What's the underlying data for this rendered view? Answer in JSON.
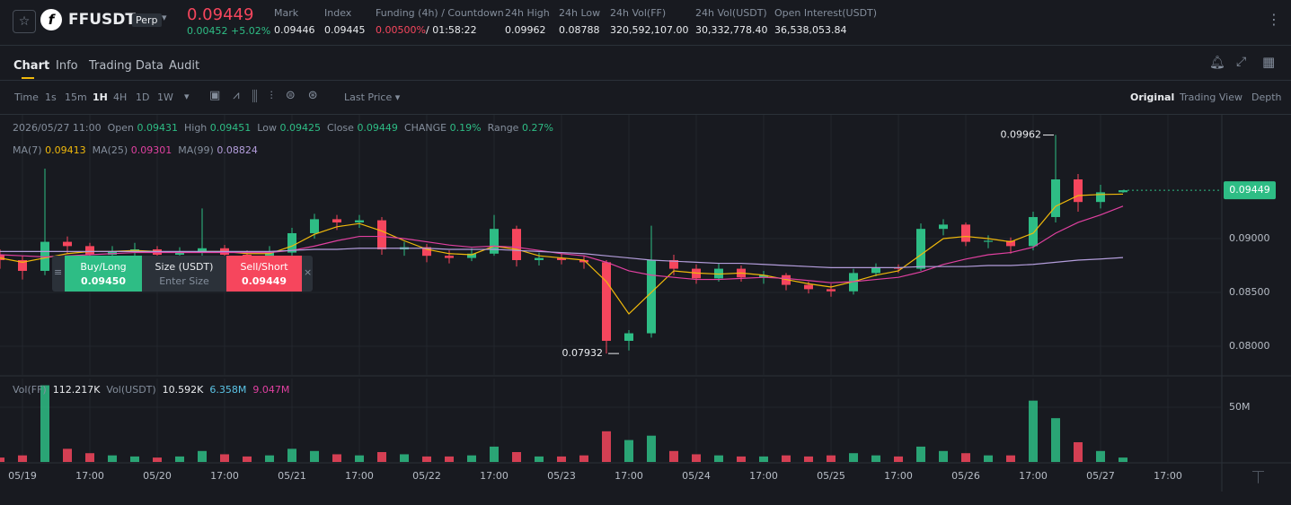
{
  "ui": {
    "symbol": "FFUSDT",
    "contract": "Perp",
    "price": "0.09449",
    "change": "0.00452 +5.02%",
    "stats": [
      {
        "label": "Mark",
        "value": "0.09446"
      },
      {
        "label": "Index",
        "value": "0.09445"
      },
      {
        "label": "Funding (4h) / Countdown",
        "value": "0.00500%",
        "value2": "/ 01:58:22"
      },
      {
        "label": "24h High",
        "value": "0.09962"
      },
      {
        "label": "24h Low",
        "value": "0.08788"
      },
      {
        "label": "24h Vol(FF)",
        "value": "320,592,107.00"
      },
      {
        "label": "24h Vol(USDT)",
        "value": "30,332,778.40"
      },
      {
        "label": "Open Interest(USDT)",
        "value": "36,538,053.84"
      }
    ],
    "tabs": [
      "Chart",
      "Info",
      "Trading Data",
      "Audit"
    ],
    "intervals": [
      "Time",
      "1s",
      "15m",
      "1H",
      "4H",
      "1D",
      "1W"
    ],
    "price_type": "Last Price",
    "views": [
      "Original",
      "Trading View",
      "Depth"
    ],
    "legend": {
      "time": "2026/05/27 11:00",
      "open": "Open",
      "high": "High",
      "low": "Low",
      "close": "Close",
      "change_label": "CHANGE",
      "change": "0.19%",
      "range_label": "Range",
      "range": "0.27%"
    },
    "volume_legend": {
      "vol_ff": "Vol(FF)",
      "vol_ff_value": "112.217K",
      "vol_usdt": "Vol(USDT)",
      "vol_usdt_value": "10.592K",
      "ma1": "6.358M",
      "ma2": "9.047M"
    },
    "order_panel": {
      "buy": "Buy/Long",
      "buy_price": "0.09450",
      "size": "Size (USDT)",
      "size_placeholder": "Enter Size",
      "sell": "Sell/Short",
      "sell_price": "0.09449"
    }
  },
  "chart_data": {
    "type": "candlestick",
    "up_color": "#2ebd85",
    "down_color": "#f6465d",
    "grid": true,
    "xlim": [
      0,
      54.4
    ],
    "xticks": [
      {
        "value": 1,
        "label": "05/19"
      },
      {
        "value": 4,
        "label": "17:00"
      },
      {
        "value": 7,
        "label": "05/20"
      },
      {
        "value": 10,
        "label": "17:00"
      },
      {
        "value": 13,
        "label": "05/21"
      },
      {
        "value": 16,
        "label": "17:00"
      },
      {
        "value": 19,
        "label": "05/22"
      },
      {
        "value": 22,
        "label": "17:00"
      },
      {
        "value": 25,
        "label": "05/23"
      },
      {
        "value": 28,
        "label": "17:00"
      },
      {
        "value": 31,
        "label": "05/24"
      },
      {
        "value": 34,
        "label": "17:00"
      },
      {
        "value": 37,
        "label": "05/25"
      },
      {
        "value": 40,
        "label": "17:00"
      },
      {
        "value": 43,
        "label": "05/26"
      },
      {
        "value": 46,
        "label": "17:00"
      },
      {
        "value": 49,
        "label": "05/27"
      },
      {
        "value": 52,
        "label": "17:00"
      }
    ],
    "ylim": [
      0.07733,
      0.1015
    ],
    "yticks": [
      {
        "value": 0.08,
        "label": "0.08000"
      },
      {
        "value": 0.085,
        "label": "0.08500"
      },
      {
        "value": 0.09,
        "label": "0.09000"
      }
    ],
    "candles": {
      "open": [
        0.0885,
        0.088,
        0.087,
        0.0897,
        0.0893,
        0.0885,
        0.0888,
        0.089,
        0.0885,
        0.0888,
        0.0891,
        0.0885,
        0.0883,
        0.0887,
        0.0905,
        0.0918,
        0.0915,
        0.0917,
        0.089,
        0.0892,
        0.0884,
        0.0882,
        0.0886,
        0.0909,
        0.088,
        0.0882,
        0.088,
        0.0878,
        0.0805,
        0.0812,
        0.088,
        0.0872,
        0.0863,
        0.0872,
        0.0864,
        0.0866,
        0.0857,
        0.0853,
        0.0851,
        0.0868,
        0.0873,
        0.0872,
        0.0909,
        0.0913,
        0.0897,
        0.0898,
        0.0893,
        0.092,
        0.0955,
        0.0934,
        0.09431
      ],
      "high": [
        0.089,
        0.0884,
        0.0965,
        0.0902,
        0.0896,
        0.0893,
        0.0896,
        0.0893,
        0.0892,
        0.0928,
        0.0894,
        0.0889,
        0.0893,
        0.091,
        0.0923,
        0.0922,
        0.0922,
        0.092,
        0.0897,
        0.0895,
        0.0889,
        0.0891,
        0.0922,
        0.0912,
        0.0887,
        0.0886,
        0.0884,
        0.088,
        0.0815,
        0.0912,
        0.0885,
        0.0876,
        0.0877,
        0.0875,
        0.087,
        0.0868,
        0.086,
        0.0858,
        0.0872,
        0.0877,
        0.0876,
        0.0914,
        0.0918,
        0.0915,
        0.0903,
        0.0901,
        0.0925,
        0.09962,
        0.096,
        0.095,
        0.09451
      ],
      "low": [
        0.0872,
        0.0862,
        0.0866,
        0.0886,
        0.088,
        0.0881,
        0.0884,
        0.088,
        0.0881,
        0.0884,
        0.088,
        0.0877,
        0.0878,
        0.0884,
        0.09,
        0.0908,
        0.091,
        0.0885,
        0.0884,
        0.0878,
        0.0877,
        0.0879,
        0.0884,
        0.0874,
        0.0875,
        0.0876,
        0.0872,
        0.07932,
        0.0796,
        0.0808,
        0.0866,
        0.0858,
        0.086,
        0.086,
        0.0858,
        0.0852,
        0.0849,
        0.0846,
        0.0848,
        0.0865,
        0.0868,
        0.087,
        0.0903,
        0.0893,
        0.0891,
        0.0886,
        0.0889,
        0.0915,
        0.0925,
        0.0928,
        0.09425
      ],
      "close": [
        0.088,
        0.087,
        0.0897,
        0.0893,
        0.0885,
        0.0888,
        0.089,
        0.0885,
        0.0888,
        0.0891,
        0.0885,
        0.0883,
        0.0887,
        0.0905,
        0.0918,
        0.0915,
        0.0917,
        0.089,
        0.0892,
        0.0884,
        0.0882,
        0.0886,
        0.0909,
        0.088,
        0.0882,
        0.088,
        0.0878,
        0.0805,
        0.0812,
        0.088,
        0.0872,
        0.0863,
        0.0872,
        0.0864,
        0.0866,
        0.0857,
        0.0853,
        0.0851,
        0.0868,
        0.0873,
        0.0872,
        0.0909,
        0.0913,
        0.0897,
        0.0898,
        0.0893,
        0.092,
        0.0955,
        0.0934,
        0.0943,
        0.09449
      ]
    },
    "series": [
      {
        "name": "MA(7)",
        "color": "#f0b90b",
        "values": [
          0.0882,
          0.0878,
          0.0882,
          0.0886,
          0.0888,
          0.0888,
          0.0889,
          0.0888,
          0.0887,
          0.0888,
          0.0888,
          0.0886,
          0.0886,
          0.0893,
          0.0904,
          0.0911,
          0.0914,
          0.0907,
          0.0898,
          0.089,
          0.0886,
          0.0885,
          0.0893,
          0.089,
          0.0884,
          0.0882,
          0.088,
          0.086,
          0.083,
          0.085,
          0.087,
          0.0868,
          0.0867,
          0.0868,
          0.0866,
          0.0862,
          0.0858,
          0.0855,
          0.086,
          0.0866,
          0.087,
          0.0885,
          0.09,
          0.0902,
          0.09,
          0.0897,
          0.0905,
          0.093,
          0.094,
          0.0941,
          0.09413
        ]
      },
      {
        "name": "MA(25)",
        "color": "#e040a0",
        "values": [
          0.0885,
          0.0884,
          0.0883,
          0.0884,
          0.0885,
          0.0886,
          0.0887,
          0.0887,
          0.0887,
          0.0887,
          0.0887,
          0.0887,
          0.0887,
          0.0889,
          0.0893,
          0.0898,
          0.0902,
          0.0902,
          0.09,
          0.0897,
          0.0894,
          0.0892,
          0.0893,
          0.0892,
          0.0889,
          0.0886,
          0.0884,
          0.0878,
          0.087,
          0.0866,
          0.0864,
          0.0862,
          0.0862,
          0.0863,
          0.0864,
          0.0863,
          0.0861,
          0.0859,
          0.086,
          0.0862,
          0.0864,
          0.0869,
          0.0876,
          0.0881,
          0.0885,
          0.0887,
          0.0892,
          0.0905,
          0.0915,
          0.0922,
          0.09301
        ]
      },
      {
        "name": "MA(99)",
        "color": "#b39ddb",
        "values": [
          0.0888,
          0.0888,
          0.0888,
          0.0888,
          0.0888,
          0.0888,
          0.0888,
          0.0888,
          0.0888,
          0.0888,
          0.0888,
          0.0888,
          0.0888,
          0.0889,
          0.089,
          0.089,
          0.0891,
          0.0891,
          0.0891,
          0.0891,
          0.089,
          0.089,
          0.089,
          0.0889,
          0.0888,
          0.0887,
          0.0886,
          0.0884,
          0.0882,
          0.088,
          0.0879,
          0.0878,
          0.0877,
          0.0877,
          0.0876,
          0.0875,
          0.0874,
          0.0873,
          0.0873,
          0.0873,
          0.0873,
          0.0874,
          0.0874,
          0.0874,
          0.0875,
          0.0875,
          0.0876,
          0.0878,
          0.088,
          0.0881,
          0.08824
        ]
      }
    ],
    "volume": {
      "ylim": [
        0,
        76200000
      ],
      "yticks": [
        {
          "value": 50000000,
          "label": "50M"
        }
      ],
      "values": [
        4000000,
        6000000,
        70000000,
        12000000,
        8000000,
        6000000,
        5000000,
        4000000,
        5000000,
        10000000,
        7000000,
        5000000,
        6000000,
        12000000,
        10000000,
        7000000,
        6000000,
        9000000,
        7000000,
        5000000,
        5000000,
        6000000,
        14000000,
        9000000,
        5000000,
        5000000,
        6000000,
        28000000,
        20000000,
        24000000,
        10000000,
        7000000,
        6000000,
        5000000,
        5000000,
        6000000,
        5000000,
        6000000,
        8000000,
        6000000,
        5000000,
        14000000,
        10000000,
        8000000,
        6000000,
        6000000,
        56000000,
        40000000,
        18000000,
        10000000,
        4000000
      ]
    }
  }
}
